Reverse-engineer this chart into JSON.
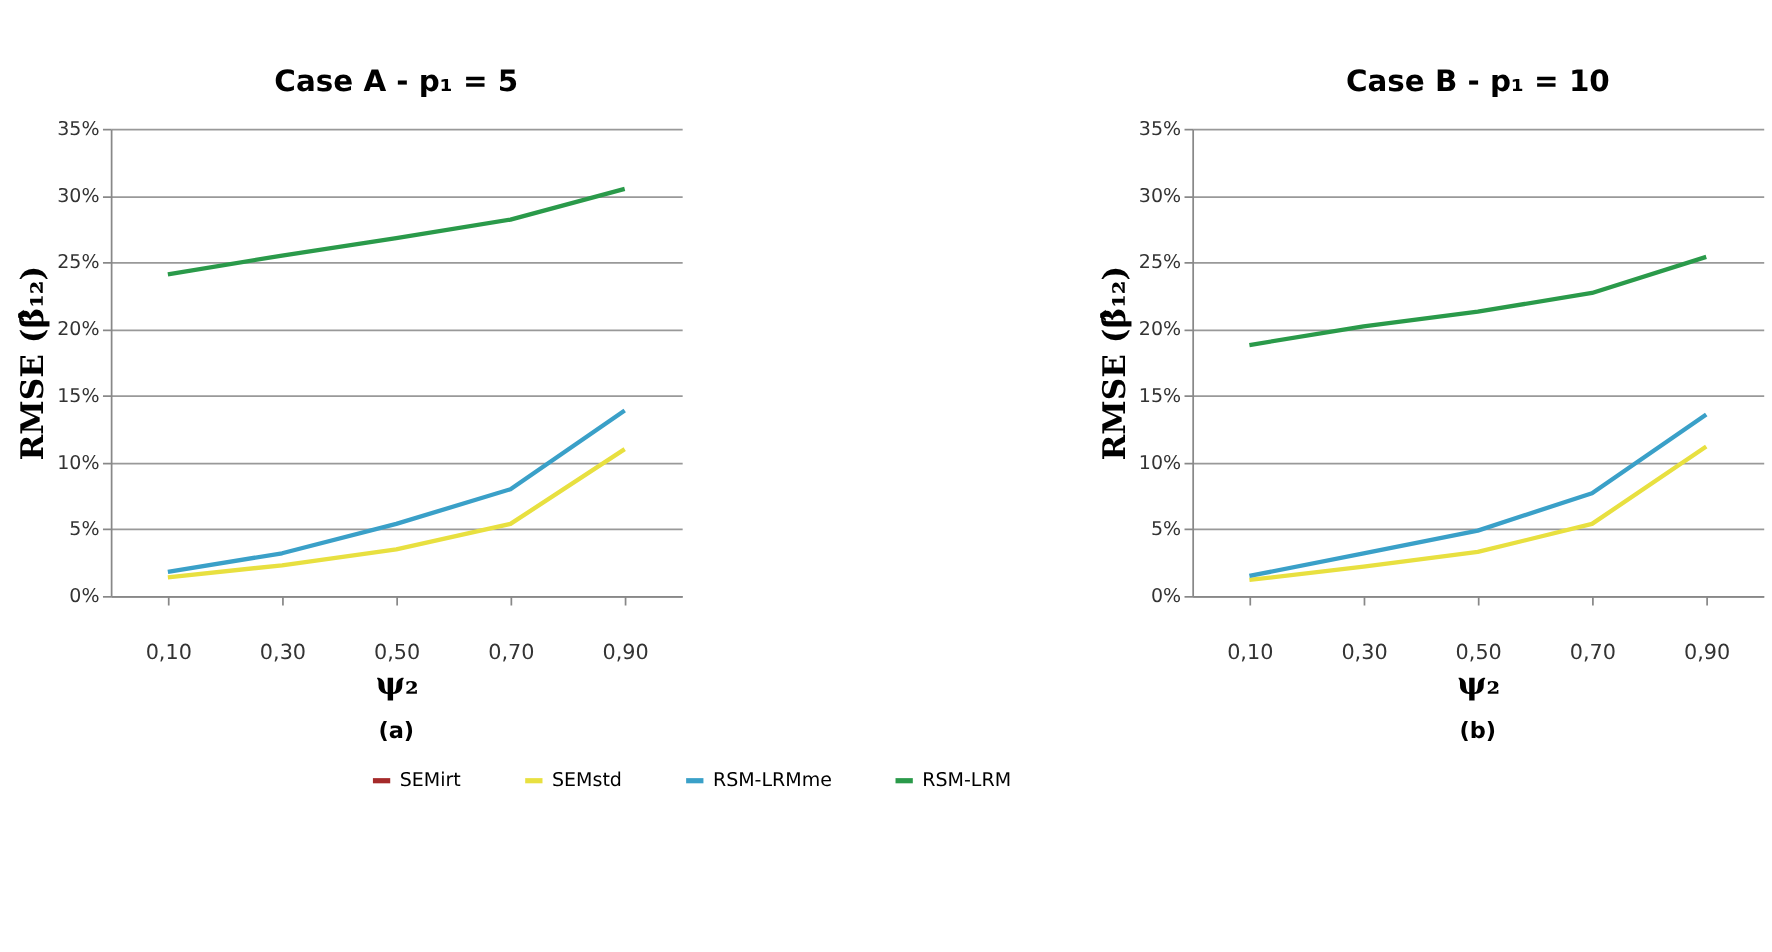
{
  "chart_data": [
    {
      "type": "line",
      "title": "Case A  -  p₁ = 5",
      "xlabel": "ψ₂",
      "ylabel": "RMSE (β̂₁₂)",
      "annotations": [
        "(a)"
      ],
      "categories": [
        "0,10",
        "0,30",
        "0,50",
        "0,70",
        "0,90"
      ],
      "series": [
        {
          "name": "SEMirt",
          "color": "#a52a2a",
          "values": [
            null,
            null,
            null,
            null,
            null
          ]
        },
        {
          "name": "SEMstd",
          "color": "#e8e040",
          "values": [
            1.4,
            2.3,
            3.5,
            5.4,
            11.0
          ]
        },
        {
          "name": "RSM-LRMme",
          "color": "#3aa0c8",
          "values": [
            1.8,
            3.2,
            5.4,
            8.0,
            13.9
          ]
        },
        {
          "name": "RSM-LRM",
          "color": "#2a9a4a",
          "values": [
            24.1,
            25.5,
            26.8,
            28.2,
            30.5
          ]
        }
      ],
      "ylim": [
        0,
        35
      ],
      "yticks": [
        {
          "value": 0,
          "label": "0%"
        },
        {
          "value": 5,
          "label": "5%"
        },
        {
          "value": 10,
          "label": "10%"
        },
        {
          "value": 15,
          "label": "15%"
        },
        {
          "value": 20,
          "label": "20%"
        },
        {
          "value": 25,
          "label": "25%"
        },
        {
          "value": 30,
          "label": "30%"
        },
        {
          "value": 35,
          "label": "35%"
        }
      ],
      "grid": "y",
      "legend": "bottom",
      "marker": "none",
      "line_style": "solid"
    },
    {
      "type": "line",
      "title": "Case B  -  p₁ = 10",
      "xlabel": "ψ₂",
      "ylabel": "RMSE (β̂₁₂)",
      "annotations": [
        "(b)"
      ],
      "categories": [
        "0,10",
        "0,30",
        "0,50",
        "0,70",
        "0,90"
      ],
      "series": [
        {
          "color": "#a52a2a",
          "values": [
            null,
            null,
            null,
            null,
            null
          ]
        },
        {
          "color": "#e8e040",
          "values": [
            1.2,
            2.2,
            3.3,
            5.4,
            11.2
          ]
        },
        {
          "color": "#3aa0c8",
          "values": [
            1.5,
            3.2,
            4.9,
            7.7,
            13.6
          ]
        },
        {
          "color": "#2a9a4a",
          "values": [
            18.8,
            20.2,
            21.3,
            22.7,
            25.4
          ]
        }
      ],
      "ylim": [
        0,
        35
      ],
      "yticks": [
        {
          "value": 0,
          "label": "0%"
        },
        {
          "value": 5,
          "label": "5%"
        },
        {
          "value": 10,
          "label": "10%"
        },
        {
          "value": 15,
          "label": "15%"
        },
        {
          "value": 20,
          "label": "20%"
        },
        {
          "value": 25,
          "label": "25%"
        },
        {
          "value": 30,
          "label": "30%"
        },
        {
          "value": 35,
          "label": "35%"
        }
      ],
      "grid": "y",
      "marker": "none",
      "line_style": "solid"
    }
  ]
}
